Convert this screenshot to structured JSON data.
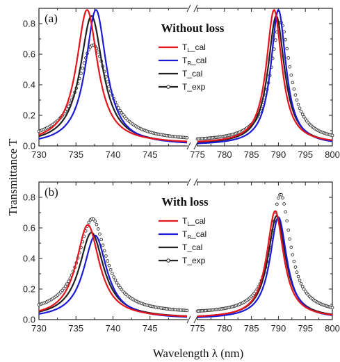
{
  "figure": {
    "xlabel": "Wavelength λ (nm)",
    "ylabel": "Transmittance T"
  },
  "chart_data": [
    {
      "type": "line",
      "panel_label": "(a)",
      "title": "Without loss",
      "ylabel": "Transmittance T",
      "ylim": [
        0.0,
        0.9
      ],
      "yticks": [
        "0.0",
        "0.2",
        "0.4",
        "0.6",
        "0.8"
      ],
      "x_segments": [
        {
          "range": [
            730,
            750
          ],
          "ticks": [
            "730",
            "735",
            "740",
            "745"
          ]
        },
        {
          "range": [
            775,
            800
          ],
          "ticks": [
            "775",
            "780",
            "785",
            "790",
            "795",
            "800"
          ]
        }
      ],
      "series": [
        {
          "name": "T_L_cal",
          "color": "#e8141b",
          "style": "line",
          "peaks": [
            {
              "center": 736.5,
              "height": 0.89,
              "width": 1.75,
              "base": 0.015
            },
            {
              "center": 789.2,
              "height": 0.89,
              "width": 1.75,
              "base": 0.015
            }
          ]
        },
        {
          "name": "T_R_cal",
          "color": "#1a1ad6",
          "style": "line",
          "peaks": [
            {
              "center": 737.7,
              "height": 0.89,
              "width": 1.7,
              "base": 0.005
            },
            {
              "center": 790.0,
              "height": 0.89,
              "width": 1.7,
              "base": 0.005
            }
          ]
        },
        {
          "name": "T_cal",
          "color": "#222222",
          "style": "line",
          "peaks": [
            {
              "center": 737.1,
              "height": 0.85,
              "width": 1.85,
              "base": 0.01
            },
            {
              "center": 789.6,
              "height": 0.85,
              "width": 1.85,
              "base": 0.01
            }
          ]
        },
        {
          "name": "T_exp",
          "color": "#333333",
          "style": "open-circles",
          "peaks": [
            {
              "center": 737.3,
              "height": 0.66,
              "width": 2.5,
              "base": 0.03
            },
            {
              "center": 790.4,
              "height": 0.81,
              "width": 2.2,
              "base": 0.03
            }
          ]
        }
      ],
      "legend": [
        {
          "main": "T",
          "sub": "L",
          "suffix": "_cal",
          "color": "#e8141b",
          "marker": false
        },
        {
          "main": "T",
          "sub": "R",
          "suffix": "_cal",
          "color": "#1a1ad6",
          "marker": false
        },
        {
          "main": "T_cal",
          "sub": "",
          "suffix": "",
          "color": "#222222",
          "marker": false
        },
        {
          "main": "T_exp",
          "sub": "",
          "suffix": "",
          "color": "#222222",
          "marker": true
        }
      ]
    },
    {
      "type": "line",
      "panel_label": "(b)",
      "title": "With loss",
      "ylabel": "Transmittance T",
      "ylim": [
        0.0,
        0.9
      ],
      "yticks": [
        "0.0",
        "0.2",
        "0.4",
        "0.6",
        "0.8"
      ],
      "x_segments": [
        {
          "range": [
            730,
            750
          ],
          "ticks": [
            "730",
            "735",
            "740",
            "745"
          ]
        },
        {
          "range": [
            775,
            800
          ],
          "ticks": [
            "775",
            "780",
            "785",
            "790",
            "795",
            "800"
          ]
        }
      ],
      "series": [
        {
          "name": "T_L_cal",
          "color": "#e8141b",
          "style": "line",
          "peaks": [
            {
              "center": 736.6,
              "height": 0.62,
              "width": 1.9,
              "base": 0.01
            },
            {
              "center": 789.4,
              "height": 0.71,
              "width": 1.9,
              "base": 0.01
            }
          ]
        },
        {
          "name": "T_R_cal",
          "color": "#1a1ad6",
          "style": "line",
          "peaks": [
            {
              "center": 737.6,
              "height": 0.55,
              "width": 1.9,
              "base": 0.005
            },
            {
              "center": 790.0,
              "height": 0.67,
              "width": 1.9,
              "base": 0.005
            }
          ]
        },
        {
          "name": "T_cal",
          "color": "#222222",
          "style": "line",
          "peaks": [
            {
              "center": 737.1,
              "height": 0.57,
              "width": 2.0,
              "base": 0.01
            },
            {
              "center": 789.7,
              "height": 0.68,
              "width": 2.0,
              "base": 0.01
            }
          ]
        },
        {
          "name": "T_exp",
          "color": "#333333",
          "style": "open-circles",
          "peaks": [
            {
              "center": 737.2,
              "height": 0.66,
              "width": 2.3,
              "base": 0.04
            },
            {
              "center": 790.4,
              "height": 0.82,
              "width": 2.2,
              "base": 0.04
            }
          ]
        }
      ],
      "legend": [
        {
          "main": "T",
          "sub": "L",
          "suffix": "_cal",
          "color": "#e8141b",
          "marker": false
        },
        {
          "main": "T",
          "sub": "R",
          "suffix": "_cal",
          "color": "#1a1ad6",
          "marker": false
        },
        {
          "main": "T_cal",
          "sub": "",
          "suffix": "",
          "color": "#222222",
          "marker": false
        },
        {
          "main": "T_exp",
          "sub": "",
          "suffix": "",
          "color": "#222222",
          "marker": true
        }
      ]
    }
  ]
}
